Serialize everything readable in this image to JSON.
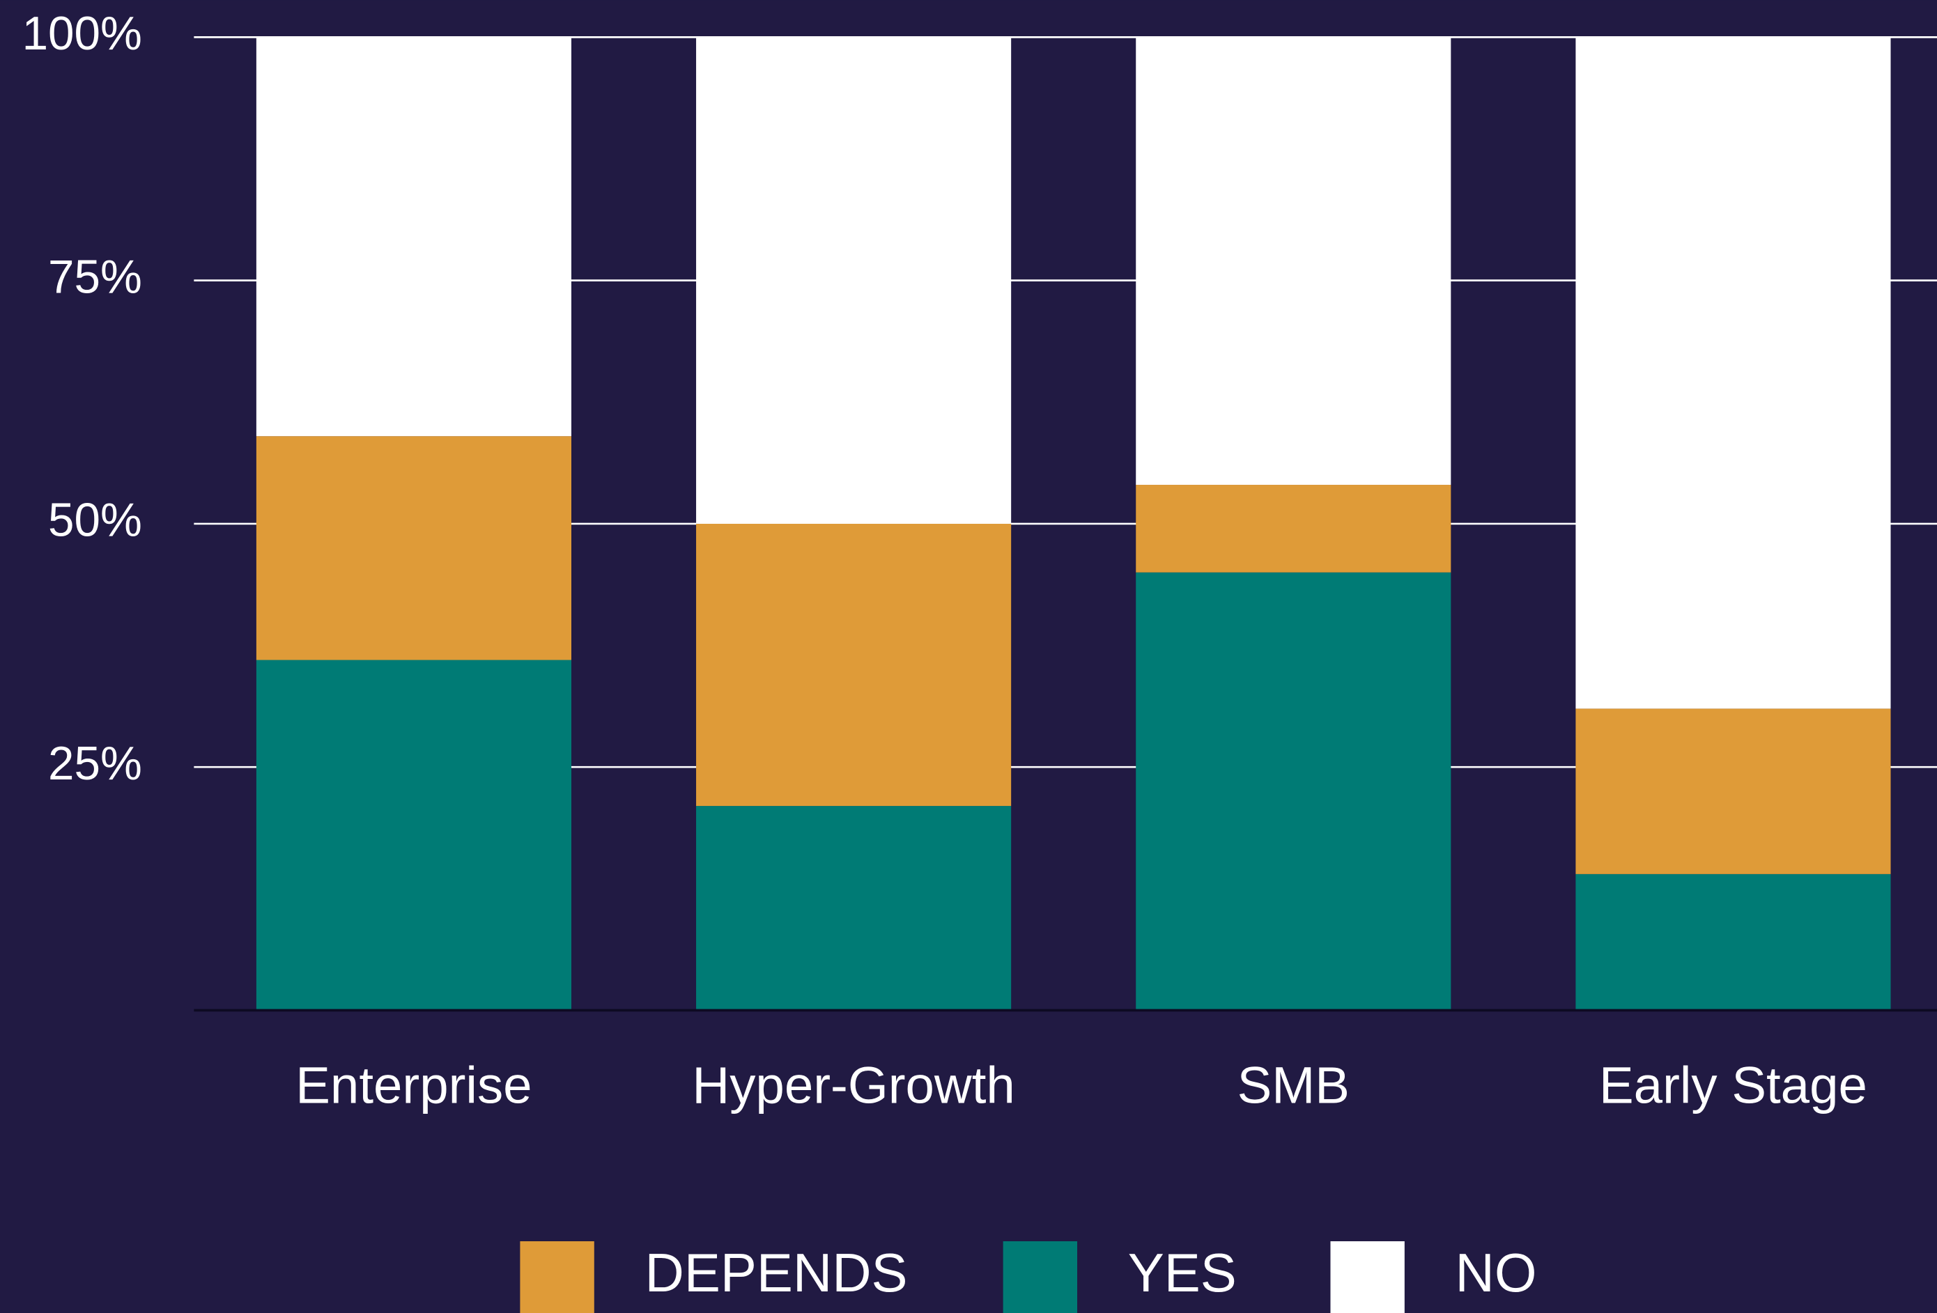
{
  "chart_data": {
    "type": "stacked_bar",
    "categories": [
      "Enterprise",
      "Hyper-Growth",
      "SMB",
      "Early Stage"
    ],
    "series": [
      {
        "name": "DEPENDS",
        "color": "#df9b38",
        "values": [
          23,
          29,
          9,
          17
        ]
      },
      {
        "name": "YES",
        "color": "#007b75",
        "values": [
          36,
          21,
          45,
          14
        ]
      },
      {
        "name": "NO",
        "color": "#ffffff",
        "values": [
          41,
          50,
          46,
          69
        ]
      }
    ],
    "stack_order": [
      1,
      0,
      2
    ],
    "ylim": [
      0,
      100
    ],
    "yticks": [
      {
        "value": 25,
        "label": "25%"
      },
      {
        "value": 50,
        "label": "50%"
      },
      {
        "value": 75,
        "label": "75%"
      },
      {
        "value": 100,
        "label": "100%"
      }
    ],
    "grid": true
  }
}
